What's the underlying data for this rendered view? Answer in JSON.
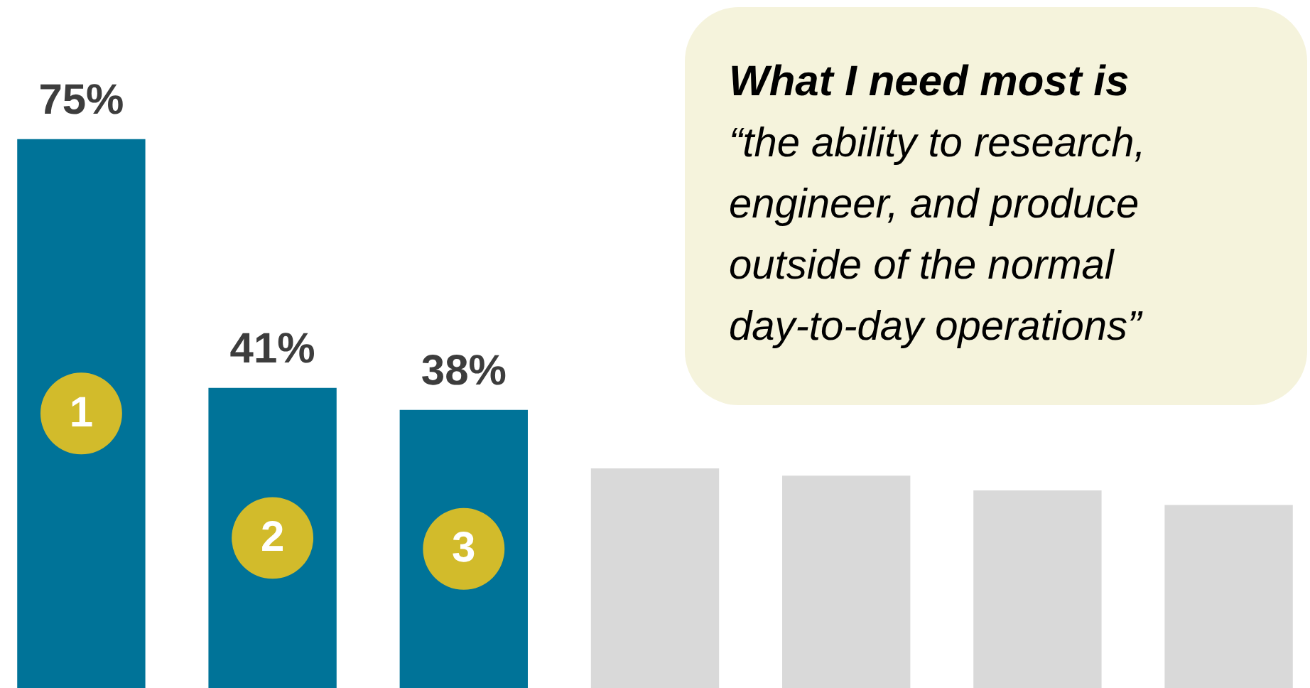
{
  "chart_data": {
    "type": "bar",
    "categories": [
      null,
      null,
      null,
      null,
      null,
      null,
      null
    ],
    "values": [
      75,
      41,
      38,
      30,
      29,
      27,
      25
    ],
    "colors": [
      "#007398",
      "#007398",
      "#007398",
      "#d9d9d9",
      "#d9d9d9",
      "#d9d9d9",
      "#d9d9d9"
    ],
    "value_labels": [
      "75%",
      "41%",
      "38%",
      null,
      null,
      null,
      null
    ],
    "ylim": [
      0,
      94
    ],
    "tick_labels": false,
    "annotations": [
      "1",
      "2",
      "3",
      "What I need most is",
      "“the ability to research,\nengineer, and produce\noutside of the normal\nday-to-day operations”"
    ]
  }
}
